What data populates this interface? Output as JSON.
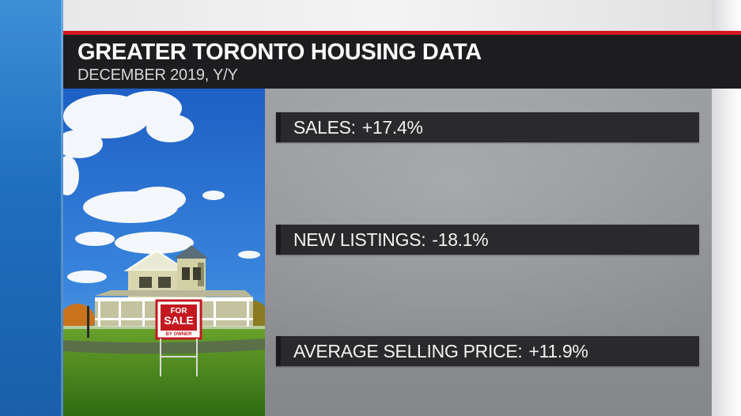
{
  "header": {
    "title": "GREATER TORONTO HOUSING DATA",
    "subtitle": "DECEMBER 2019, Y/Y"
  },
  "photo": {
    "sign_text_line1": "FOR",
    "sign_text_line2": "SALE",
    "sign_text_line3": "BY OWNER"
  },
  "stats": [
    {
      "label": "SALES:",
      "value": "+17.4%"
    },
    {
      "label": "NEW LISTINGS:",
      "value": "-18.1%"
    },
    {
      "label": "AVERAGE SELLING PRICE:",
      "value": "+11.9%"
    }
  ],
  "colors": {
    "accent_red": "#d11a1f",
    "title_bar": "#1d1d20",
    "stat_bar": "#2a2a2d",
    "left_strip_blue": "#1f6fbf"
  }
}
